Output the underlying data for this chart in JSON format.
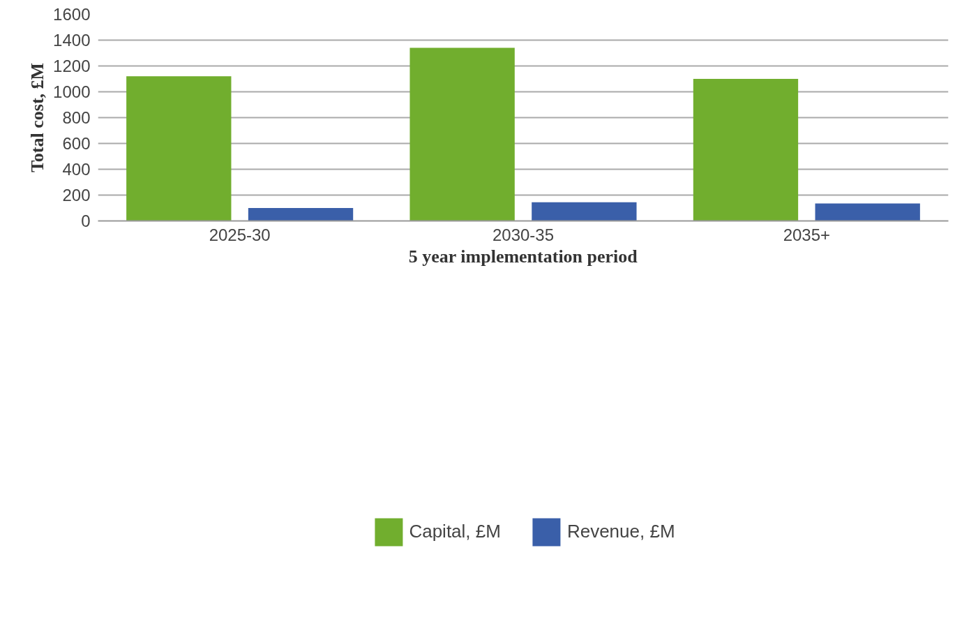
{
  "chart_data": {
    "type": "bar",
    "xlabel": "5 year implementation period",
    "ylabel": "Total cost, £M",
    "categories": [
      "2025-30",
      "2030-35",
      "2035+"
    ],
    "series": [
      {
        "name": "Capital, £M",
        "color": "#71ae2e",
        "values": [
          1120,
          1340,
          1100
        ]
      },
      {
        "name": "Revenue, £M",
        "color": "#3a5fa9",
        "values": [
          100,
          145,
          135
        ]
      }
    ],
    "ylim": [
      0,
      1600
    ],
    "yticks": [
      0,
      200,
      400,
      600,
      800,
      1000,
      1200,
      1400,
      1600
    ],
    "grid": "y",
    "legend": "bottom"
  }
}
